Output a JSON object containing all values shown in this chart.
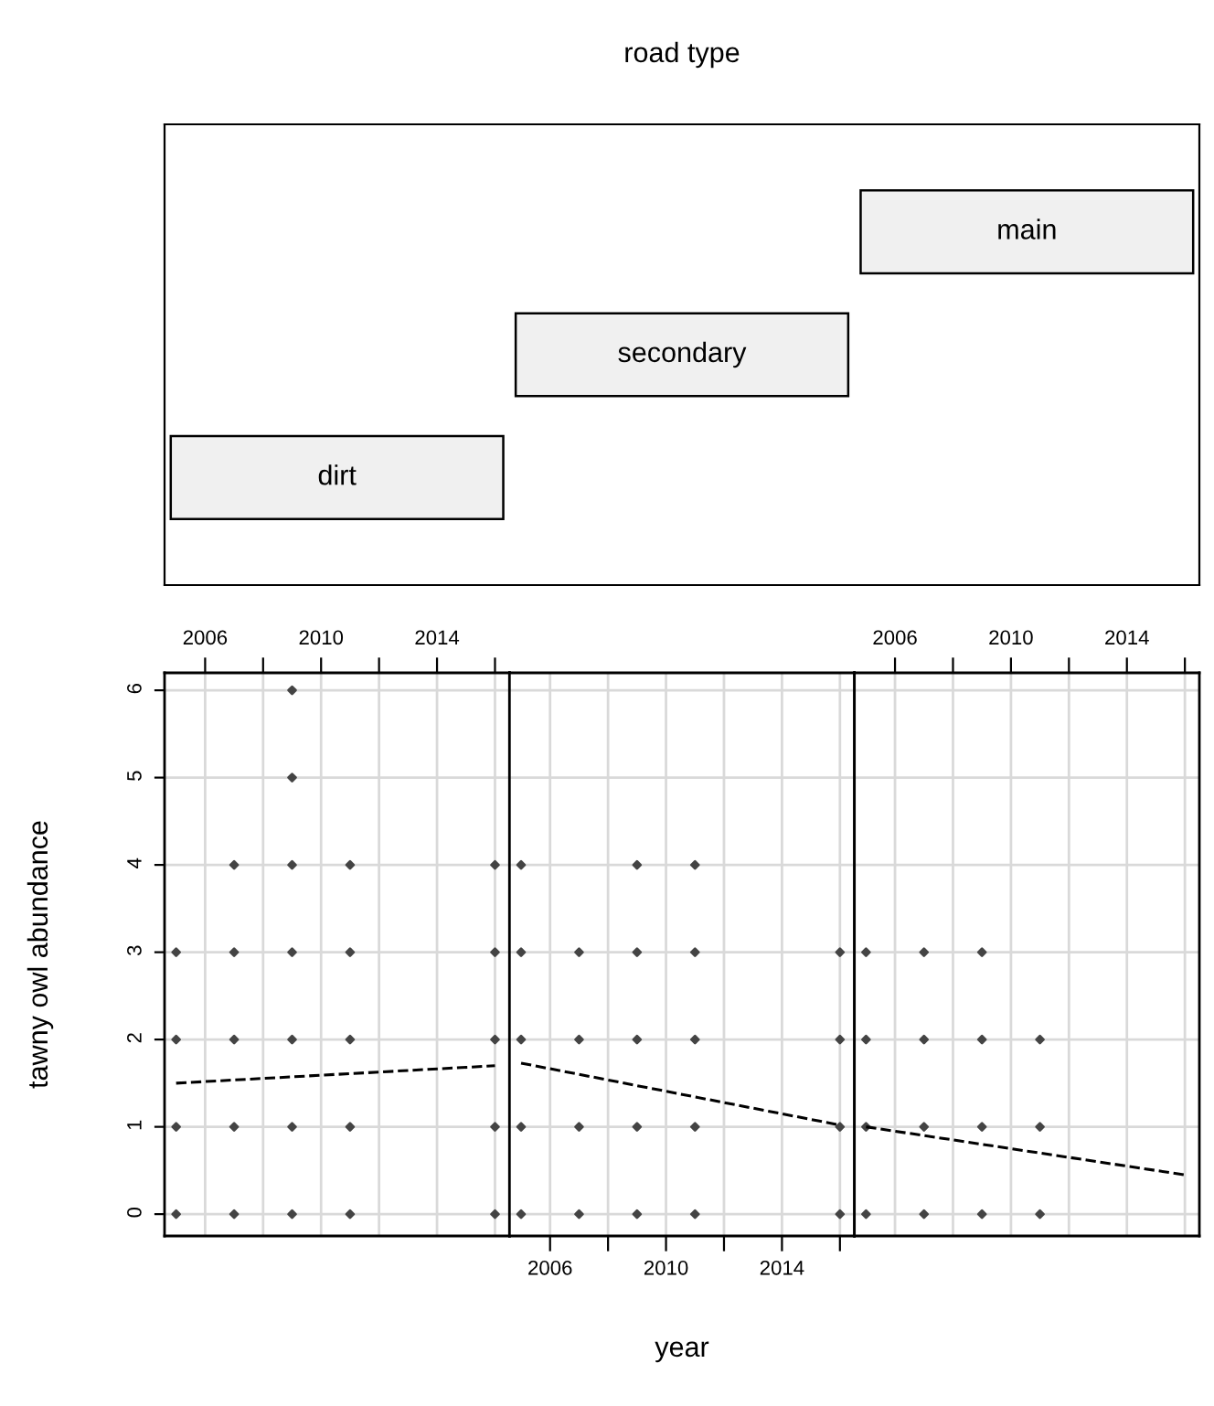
{
  "chart_data": [
    {
      "type": "other",
      "title": "road type",
      "annotations": [
        "dirt",
        "secondary",
        "main"
      ]
    },
    {
      "type": "scatter",
      "ylabel": "tawny owl abundance",
      "xlim": [
        2004.6,
        2016.5
      ],
      "ylim": [
        -0.25,
        6.2
      ],
      "xticks": [
        2006,
        {
          "value": 2008,
          "label": null
        },
        2010,
        {
          "value": 2012,
          "label": null
        },
        2014,
        {
          "value": 2016,
          "label": null
        }
      ],
      "yticks": [
        0,
        1,
        2,
        3,
        4,
        5,
        6
      ],
      "grid": true,
      "series": [
        {
          "type": "scatter",
          "marker": "diamond",
          "color": "#444444",
          "x": [
            2005,
            2005,
            2005,
            2005,
            2007,
            2007,
            2007,
            2007,
            2007,
            2009,
            2009,
            2009,
            2009,
            2009,
            2009,
            2009,
            2011,
            2011,
            2011,
            2011,
            2011,
            2016,
            2016,
            2016,
            2016,
            2016
          ],
          "values": [
            0,
            1,
            2,
            3,
            0,
            1,
            2,
            3,
            4,
            0,
            1,
            2,
            3,
            4,
            5,
            6,
            0,
            1,
            2,
            3,
            4,
            0,
            1,
            2,
            3,
            4
          ]
        },
        {
          "type": "line",
          "color": "#000000",
          "line_style": "dashed",
          "x": [
            2005,
            2016
          ],
          "values": [
            1.5,
            1.7
          ]
        }
      ]
    },
    {
      "type": "scatter",
      "xlabel": "year",
      "xlim": [
        2004.6,
        2016.5
      ],
      "ylim": [
        -0.25,
        6.2
      ],
      "xticks": [
        2006,
        {
          "value": 2008,
          "label": null
        },
        2010,
        {
          "value": 2012,
          "label": null
        },
        2014,
        {
          "value": 2016,
          "label": null
        }
      ],
      "yticks": [
        {
          "value": 0,
          "label": null
        },
        {
          "value": 1,
          "label": null
        },
        {
          "value": 2,
          "label": null
        },
        {
          "value": 3,
          "label": null
        },
        {
          "value": 4,
          "label": null
        },
        {
          "value": 5,
          "label": null
        },
        {
          "value": 6,
          "label": null
        }
      ],
      "grid": true,
      "tick_labels": "x",
      "series": [
        {
          "type": "scatter",
          "marker": "diamond",
          "color": "#444444",
          "x": [
            2005,
            2005,
            2005,
            2005,
            2005,
            2007,
            2007,
            2007,
            2007,
            2009,
            2009,
            2009,
            2009,
            2009,
            2011,
            2011,
            2011,
            2011,
            2011,
            2016,
            2016,
            2016,
            2016
          ],
          "values": [
            0,
            1,
            2,
            3,
            4,
            0,
            1,
            2,
            3,
            0,
            1,
            2,
            3,
            4,
            0,
            1,
            2,
            3,
            4,
            0,
            1,
            2,
            3
          ]
        },
        {
          "type": "line",
          "color": "#000000",
          "line_style": "dashed",
          "x": [
            2005,
            2016
          ],
          "values": [
            1.73,
            1.02
          ]
        }
      ]
    },
    {
      "type": "scatter",
      "xlim": [
        2004.6,
        2016.5
      ],
      "ylim": [
        -0.25,
        6.2
      ],
      "xticks": [
        2006,
        {
          "value": 2008,
          "label": null
        },
        2010,
        {
          "value": 2012,
          "label": null
        },
        2014,
        {
          "value": 2016,
          "label": null
        }
      ],
      "yticks": [
        {
          "value": 0,
          "label": null
        },
        {
          "value": 1,
          "label": null
        },
        {
          "value": 2,
          "label": null
        },
        {
          "value": 3,
          "label": null
        },
        {
          "value": 4,
          "label": null
        },
        {
          "value": 5,
          "label": null
        },
        {
          "value": 6,
          "label": null
        }
      ],
      "grid": true,
      "tick_labels": "x",
      "series": [
        {
          "type": "scatter",
          "marker": "diamond",
          "color": "#444444",
          "x": [
            2005,
            2005,
            2005,
            2005,
            2007,
            2007,
            2007,
            2007,
            2009,
            2009,
            2009,
            2009,
            2011,
            2011,
            2011
          ],
          "values": [
            0,
            1,
            2,
            3,
            0,
            1,
            2,
            3,
            0,
            1,
            2,
            3,
            0,
            1,
            2
          ]
        },
        {
          "type": "line",
          "color": "#000000",
          "line_style": "dashed",
          "x": [
            2005,
            2016
          ],
          "values": [
            1.0,
            0.45
          ]
        }
      ]
    }
  ]
}
